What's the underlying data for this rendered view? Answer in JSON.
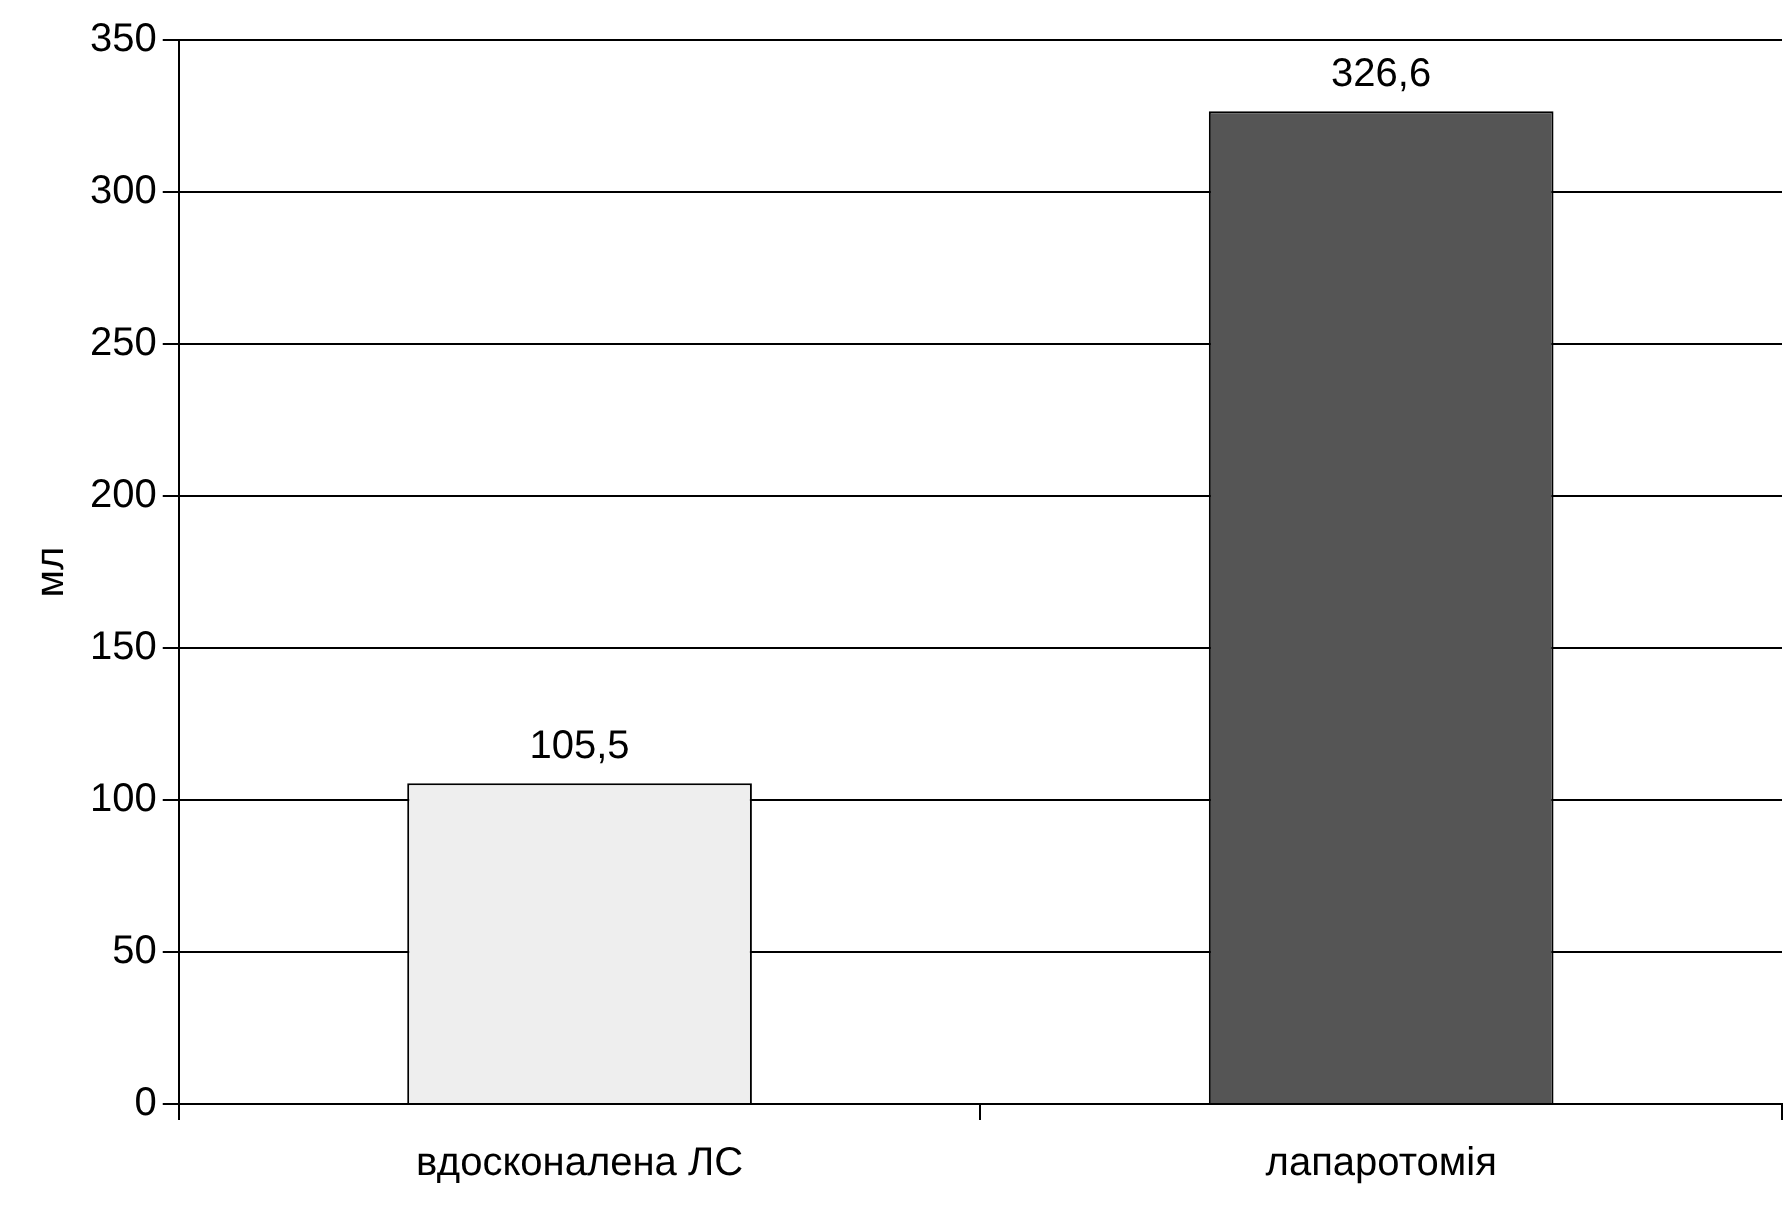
{
  "chart_data": {
    "type": "bar",
    "ylabel": "мл",
    "categories": [
      "вдосконалена ЛС",
      "лапаротомія"
    ],
    "values": [
      105.5,
      326.6
    ],
    "colors": [
      "#eeeeee",
      "#555555"
    ],
    "value_labels": [
      "105,5",
      "326,6"
    ],
    "ylim": [
      0,
      350
    ],
    "yticks": [
      0,
      50,
      100,
      150,
      200,
      250,
      300,
      350
    ],
    "grid": "y",
    "legend": false
  }
}
